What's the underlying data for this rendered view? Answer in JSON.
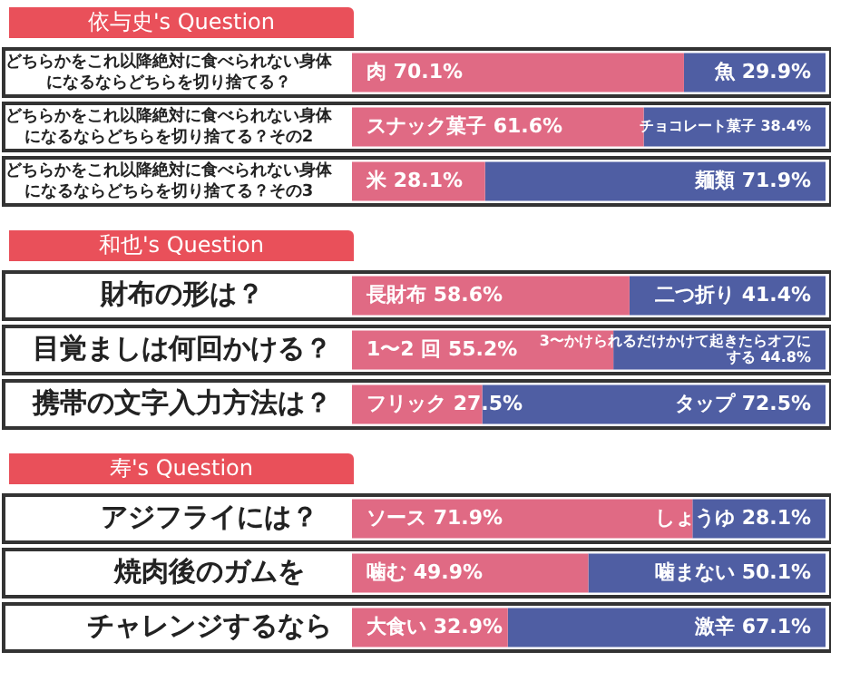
{
  "chart_data": [
    {
      "type": "bar",
      "orientation": "horizontal",
      "stacked": true,
      "tick_labels": "y",
      "title": "依与史's Question",
      "categories": [
        "どちらかをこれ以降絶対に食べられない身体になるならどちらを切り捨てる？",
        "どちらかをこれ以降絶対に食べられない身体になるならどちらを切り捨てる？その2",
        "どちらかをこれ以降絶対に食べられない身体になるならどちらを切り捨てる？その3"
      ],
      "series": [
        {
          "color": "#e06a84",
          "values": [
            70.1,
            61.6,
            28.1
          ],
          "value_labels": [
            "肉 70.1%",
            "スナック菓子 61.6%",
            "米 28.1%"
          ]
        },
        {
          "color": "#4f5ea3",
          "values": [
            29.9,
            38.4,
            71.9
          ],
          "value_labels": [
            "魚 29.9%",
            "チョコレート菓子 38.4%",
            "麺類 71.9%"
          ]
        }
      ]
    },
    {
      "type": "bar",
      "orientation": "horizontal",
      "stacked": true,
      "tick_labels": "y",
      "title": "和也's Question",
      "categories": [
        "財布の形は？",
        "目覚ましは何回かける？",
        "携帯の文字入力方法は？"
      ],
      "series": [
        {
          "color": "#e06a84",
          "values": [
            58.6,
            55.2,
            27.5
          ],
          "value_labels": [
            "長財布 58.6%",
            "1〜2 回 55.2%",
            "フリック 27.5%"
          ]
        },
        {
          "color": "#4f5ea3",
          "values": [
            41.4,
            44.8,
            72.5
          ],
          "value_labels": [
            "二つ折り 41.4%",
            "3〜かけられるだけかけて起きたらオフにする 44.8%",
            "タップ 72.5%"
          ]
        }
      ]
    },
    {
      "type": "bar",
      "orientation": "horizontal",
      "stacked": true,
      "tick_labels": "y",
      "title": "寿's Question",
      "categories": [
        "アジフライには？",
        "焼肉後のガムを",
        "チャレンジするなら"
      ],
      "series": [
        {
          "color": "#e06a84",
          "values": [
            71.9,
            49.9,
            32.9
          ],
          "value_labels": [
            "ソース 71.9%",
            "噛む 49.9%",
            "大食い 32.9%"
          ]
        },
        {
          "color": "#4f5ea3",
          "values": [
            28.1,
            50.1,
            67.1
          ],
          "value_labels": [
            "しょうゆ 28.1%",
            "噛まない 50.1%",
            "激辛 67.1%"
          ]
        }
      ]
    }
  ]
}
